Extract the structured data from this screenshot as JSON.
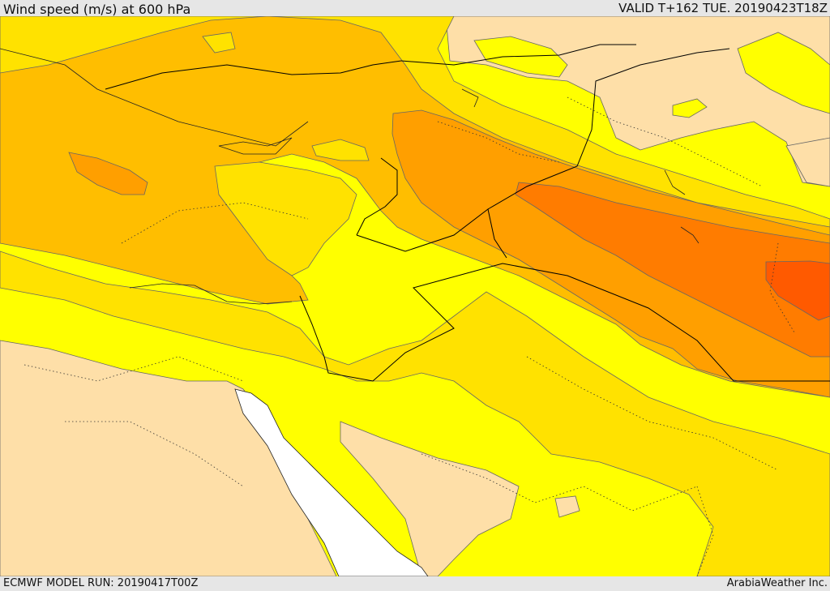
{
  "header": {
    "title": "Wind speed (m/s) at 600 hPa",
    "valid": "VALID T+162 TUE. 20190423T18Z"
  },
  "footer": {
    "model_run": "ECMWF MODEL RUN: 20190417T00Z",
    "credit": "ArabiaWeather Inc."
  },
  "colors": {
    "sea_band": "#ffffff",
    "lightest": "#fedfa8",
    "yellow": "#ffff00",
    "gold": "#ffe200",
    "light_orange": "#ffbe00",
    "orange": "#ff9f00",
    "dark_orange": "#ff7c00",
    "red_orange": "#ff5a00",
    "contour": "#666666",
    "border": "#000000"
  }
}
